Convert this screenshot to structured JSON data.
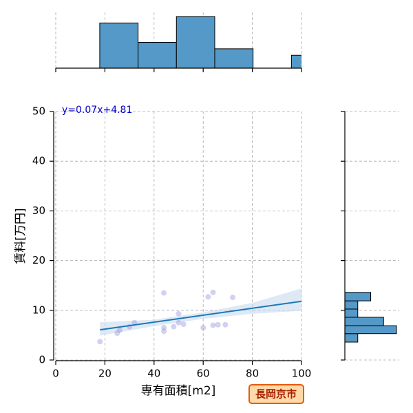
{
  "chart_data": {
    "type": "joint",
    "x_label": "専有面積[m2]",
    "y_label": "賃料[万円]",
    "annotation": "y=0.07x+4.81",
    "badge": "長岡京市",
    "xlim": [
      0,
      100
    ],
    "xticks": [
      0,
      20,
      40,
      60,
      80,
      100
    ],
    "ylim": [
      0,
      50
    ],
    "yticks": [
      0,
      10,
      20,
      30,
      40,
      50
    ],
    "grid": true,
    "scatter": {
      "color": "#9a9ae0",
      "x": [
        18,
        25,
        26,
        30,
        32,
        44,
        44,
        44,
        48,
        50,
        50,
        52,
        60,
        62,
        64,
        64,
        66,
        69,
        72
      ],
      "y": [
        3.7,
        5.4,
        6.0,
        6.7,
        7.5,
        13.5,
        6.5,
        5.8,
        6.7,
        9.3,
        7.5,
        7.2,
        6.5,
        12.7,
        13.6,
        7.0,
        7.1,
        7.1,
        12.6
      ]
    },
    "fit": {
      "color": "#1f77b4",
      "x": [
        18,
        100
      ],
      "y": [
        6.07,
        11.81
      ]
    },
    "band": {
      "color": "#c6dbef",
      "x": [
        18,
        40,
        60,
        80,
        100
      ],
      "lower": [
        4.9,
        6.8,
        8.3,
        9.3,
        9.9
      ],
      "upper": [
        7.6,
        8.1,
        9.6,
        11.5,
        14.4
      ]
    },
    "top_hist": {
      "color": "#5499c7",
      "bins": [
        17.9,
        33.5,
        49.1,
        64.7,
        80.3,
        95.9,
        111.5
      ],
      "counts": [
        7,
        4,
        8,
        3,
        0,
        2
      ],
      "lim": [
        0,
        8
      ]
    },
    "right_hist": {
      "color": "#5499c7",
      "bins": [
        3.6,
        5.3,
        6.9,
        8.6,
        10.25,
        11.9,
        13.6
      ],
      "counts": [
        2,
        8,
        6,
        2,
        2,
        4
      ],
      "lim": [
        0,
        8
      ]
    }
  }
}
